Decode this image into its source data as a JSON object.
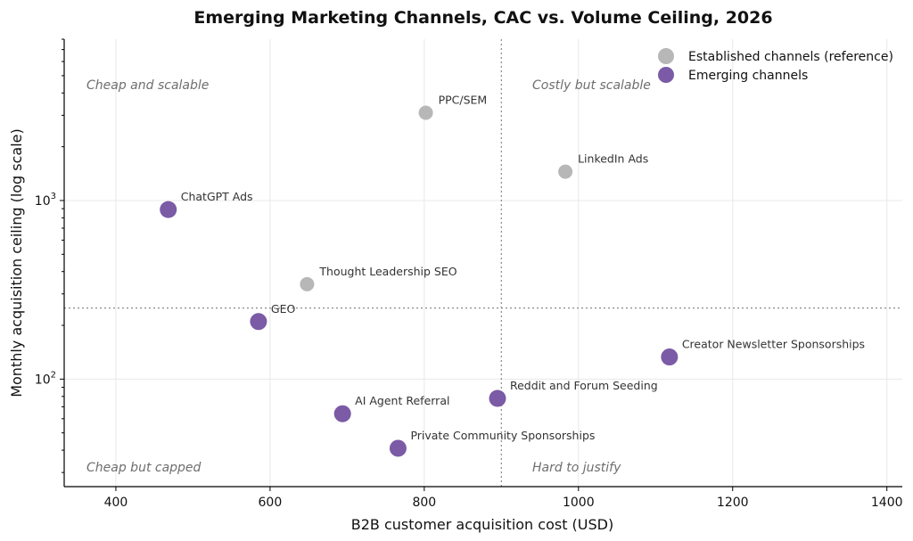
{
  "chart_data": {
    "type": "scatter",
    "title": "Emerging Marketing Channels, CAC vs. Volume Ceiling, 2026",
    "xlabel": "B2B customer acquisition cost (USD)",
    "ylabel": "Monthly acquisition ceiling (log scale)",
    "xlim": [
      333,
      1420
    ],
    "ylim": [
      25,
      8000
    ],
    "yscale": "log",
    "grid": true,
    "legend_position": "top-right",
    "x_ticks": [
      {
        "value": 400,
        "label": "400"
      },
      {
        "value": 600,
        "label": "600"
      },
      {
        "value": 800,
        "label": "800"
      },
      {
        "value": 1000,
        "label": "1000"
      },
      {
        "value": 1200,
        "label": "1200"
      },
      {
        "value": 1400,
        "label": "1400"
      }
    ],
    "y_ticks": [
      {
        "value": 100,
        "base": "10",
        "exp": "2"
      },
      {
        "value": 1000,
        "base": "10",
        "exp": "3"
      }
    ],
    "reference_lines": {
      "x": 900,
      "y": 250
    },
    "quadrant_labels": {
      "top_left": "Cheap and scalable",
      "top_right": "Costly but scalable",
      "bottom_left": "Cheap but capped",
      "bottom_right": "Hard to justify"
    },
    "series": [
      {
        "name": "Established channels (reference)",
        "color": "#b7b7b7",
        "points": [
          {
            "label": "PPC/SEM",
            "x": 802,
            "y": 3100
          },
          {
            "label": "LinkedIn Ads",
            "x": 983,
            "y": 1450
          },
          {
            "label": "Thought Leadership SEO",
            "x": 648,
            "y": 340
          }
        ]
      },
      {
        "name": "Emerging channels",
        "color": "#7b5aa6",
        "points": [
          {
            "label": "ChatGPT Ads",
            "x": 468,
            "y": 890
          },
          {
            "label": "GEO",
            "x": 585,
            "y": 210
          },
          {
            "label": "Creator Newsletter Sponsorships",
            "x": 1118,
            "y": 133
          },
          {
            "label": "Reddit and Forum Seeding",
            "x": 895,
            "y": 78
          },
          {
            "label": "AI Agent Referral",
            "x": 694,
            "y": 64
          },
          {
            "label": "Private Community Sponsorships",
            "x": 766,
            "y": 41
          }
        ]
      }
    ]
  }
}
